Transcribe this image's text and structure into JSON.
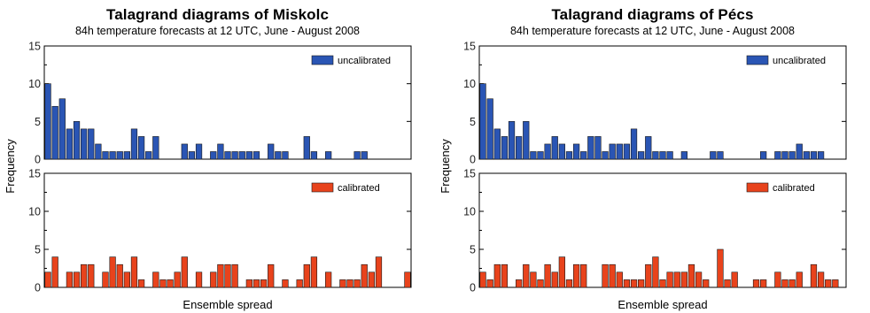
{
  "chart_data": [
    {
      "type": "bar",
      "title": "Talagrand diagrams of Miskolc",
      "subtitle": "84h temperature forecasts at 12 UTC, June - August 2008",
      "xlabel": "Ensemble spread",
      "ylabel": "Frequency",
      "ylim": [
        0,
        15
      ],
      "yticks": [
        "0",
        "5",
        "10",
        "15"
      ],
      "series": [
        {
          "name": "uncalibrated",
          "color": "#2a55b4",
          "values": [
            10,
            7,
            8,
            4,
            5,
            4,
            4,
            2,
            1,
            1,
            1,
            1,
            4,
            3,
            1,
            3,
            0,
            0,
            0,
            2,
            1,
            2,
            0,
            1,
            2,
            1,
            1,
            1,
            1,
            1,
            0,
            2,
            1,
            1,
            0,
            0,
            3,
            1,
            0,
            1,
            0,
            0,
            0,
            1,
            1,
            0,
            0,
            0,
            0,
            0,
            0
          ]
        },
        {
          "name": "calibrated",
          "color": "#e8431c",
          "values": [
            2,
            4,
            0,
            2,
            2,
            3,
            3,
            0,
            2,
            4,
            3,
            2,
            4,
            1,
            0,
            2,
            1,
            1,
            2,
            4,
            0,
            2,
            0,
            2,
            3,
            3,
            3,
            0,
            1,
            1,
            1,
            3,
            0,
            1,
            0,
            1,
            3,
            4,
            0,
            2,
            0,
            1,
            1,
            1,
            3,
            2,
            4,
            0,
            0,
            0,
            2
          ]
        }
      ]
    },
    {
      "type": "bar",
      "title": "Talagrand diagrams of Pécs",
      "subtitle": "84h temperature forecasts at 12 UTC, June - August 2008",
      "xlabel": "Ensemble spread",
      "ylabel": "Frequency",
      "ylim": [
        0,
        15
      ],
      "yticks": [
        "0",
        "5",
        "10",
        "15"
      ],
      "series": [
        {
          "name": "uncalibrated",
          "color": "#2a55b4",
          "values": [
            10,
            8,
            4,
            3,
            5,
            3,
            5,
            1,
            1,
            2,
            3,
            2,
            1,
            2,
            1,
            3,
            3,
            1,
            2,
            2,
            2,
            4,
            1,
            3,
            1,
            1,
            1,
            0,
            1,
            0,
            0,
            0,
            1,
            1,
            0,
            0,
            0,
            0,
            0,
            1,
            0,
            1,
            1,
            1,
            2,
            1,
            1,
            1,
            0,
            0,
            0
          ]
        },
        {
          "name": "calibrated",
          "color": "#e8431c",
          "values": [
            2,
            1,
            3,
            3,
            0,
            1,
            3,
            2,
            1,
            3,
            2,
            4,
            1,
            3,
            3,
            0,
            0,
            3,
            3,
            2,
            1,
            1,
            1,
            3,
            4,
            1,
            2,
            2,
            2,
            3,
            2,
            1,
            0,
            5,
            1,
            2,
            0,
            0,
            1,
            1,
            0,
            2,
            1,
            1,
            2,
            0,
            3,
            2,
            1,
            1,
            0
          ]
        }
      ]
    }
  ]
}
